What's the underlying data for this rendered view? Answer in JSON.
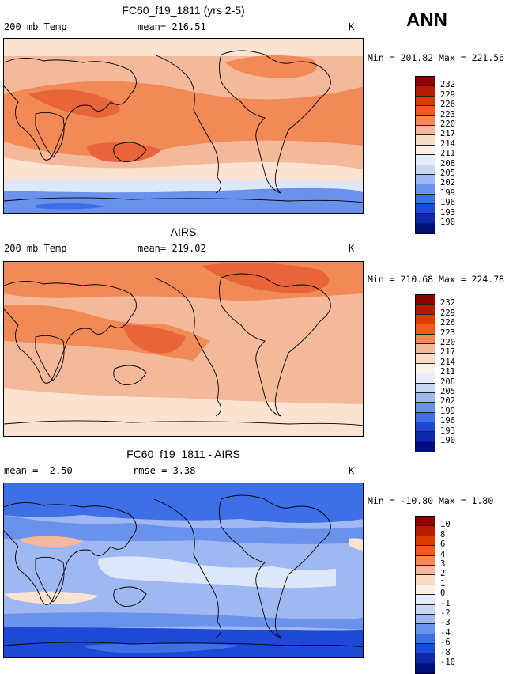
{
  "season_label": "ANN",
  "panels": [
    {
      "title": "FC60_f19_1811 (yrs 2-5)",
      "left_label": "200 mb Temp",
      "center_label": "mean= 216.51",
      "unit": "K",
      "minmax": "Min = 201.82 Max = 221.56",
      "colorbar_levels": [
        "232",
        "229",
        "226",
        "223",
        "220",
        "217",
        "214",
        "211",
        "208",
        "205",
        "202",
        "199",
        "196",
        "193",
        "190"
      ],
      "colorbar_colors": [
        "#8b0000",
        "#b51a00",
        "#d93b00",
        "#f15a1a",
        "#f28a58",
        "#f4b89a",
        "#f9dcc6",
        "#fdf0e6",
        "#e5ecfa",
        "#c9d8f7",
        "#9fb8f2",
        "#6a91ec",
        "#3f6fe6",
        "#1d49d6",
        "#0d2ba8",
        "#00107a"
      ]
    },
    {
      "title": "AIRS",
      "left_label": "200 mb Temp",
      "center_label": "mean= 219.02",
      "unit": "K",
      "minmax": "Min = 210.68 Max = 224.78",
      "colorbar_levels": [
        "232",
        "229",
        "226",
        "223",
        "220",
        "217",
        "214",
        "211",
        "208",
        "205",
        "202",
        "199",
        "196",
        "193",
        "190"
      ],
      "colorbar_colors": [
        "#8b0000",
        "#b51a00",
        "#d93b00",
        "#f15a1a",
        "#f28a58",
        "#f4b89a",
        "#f9dcc6",
        "#fdf0e6",
        "#e5ecfa",
        "#c9d8f7",
        "#9fb8f2",
        "#6a91ec",
        "#3f6fe6",
        "#1d49d6",
        "#0d2ba8",
        "#00107a"
      ]
    },
    {
      "title": "FC60_f19_1811 - AIRS",
      "left_label": "mean =   -2.50",
      "center_label": "rmse =    3.38",
      "unit": "K",
      "minmax": "Min = -10.80 Max =   1.80",
      "colorbar_levels": [
        "10",
        "8",
        "6",
        "4",
        "3",
        "2",
        "1",
        "0",
        "-1",
        "-2",
        "-3",
        "-4",
        "-6",
        "-8",
        "-10"
      ],
      "colorbar_colors": [
        "#8b0000",
        "#b51a00",
        "#d93b00",
        "#f15a1a",
        "#f28a58",
        "#f4b89a",
        "#f9dcc6",
        "#fdf0e6",
        "#e5ecfa",
        "#c9d8f7",
        "#9fb8f2",
        "#6a91ec",
        "#3f6fe6",
        "#1d49d6",
        "#0d2ba8",
        "#00107a"
      ]
    }
  ],
  "field_colors": {
    "warm_dark": "#e8643a",
    "warm_mid": "#f28a58",
    "warm_light": "#f4b89a",
    "warm_pale": "#fbe3d2",
    "cool_pale": "#dde7fa",
    "cool_light": "#9fb8f2",
    "cool_mid": "#6a91ec",
    "cool_dark": "#3f6fe6",
    "cool_deep": "#1d49d6"
  }
}
